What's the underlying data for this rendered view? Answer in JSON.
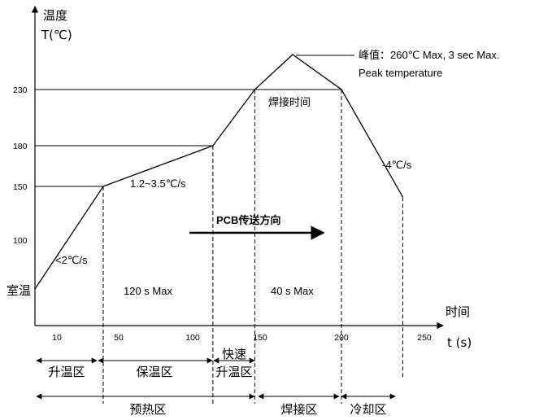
{
  "chart_data": {
    "type": "line",
    "title": "",
    "y_axis": {
      "label": "温度",
      "label2": "T(℃)",
      "room_label": "室温",
      "ticks": [
        100,
        150,
        180,
        230
      ],
      "ylim": [
        0,
        270
      ]
    },
    "x_axis": {
      "label": "时间",
      "label2": "t (s)",
      "ticks": [
        10,
        50,
        100,
        150,
        200,
        250
      ],
      "xlim": [
        0,
        270
      ]
    },
    "profile": {
      "points": [
        [
          0,
          25
        ],
        [
          40,
          150
        ],
        [
          115,
          180
        ],
        [
          146,
          230
        ],
        [
          170,
          260
        ],
        [
          200,
          230
        ],
        [
          237,
          140
        ]
      ]
    },
    "phase_boundaries": [
      40,
      115,
      146,
      200,
      237
    ],
    "annotations": {
      "ramp_rate": "<2℃/s",
      "soak_rate": "1.2~3.5℃/s",
      "cool_rate": "-4℃/s",
      "peak_line1": "峰值：260℃ Max, 3 sec Max.",
      "peak_line2": "Peak temperature",
      "reflow_time": "焊接时间",
      "conveyor": "PCB传送方向",
      "soak_time": "120 s Max",
      "reflow_time_max": "40 s Max"
    },
    "zones_row1": [
      "升温区",
      "保温区",
      "快速",
      "升温区"
    ],
    "zones_row2": [
      "预热区",
      "焊接区",
      "冷却区"
    ]
  }
}
